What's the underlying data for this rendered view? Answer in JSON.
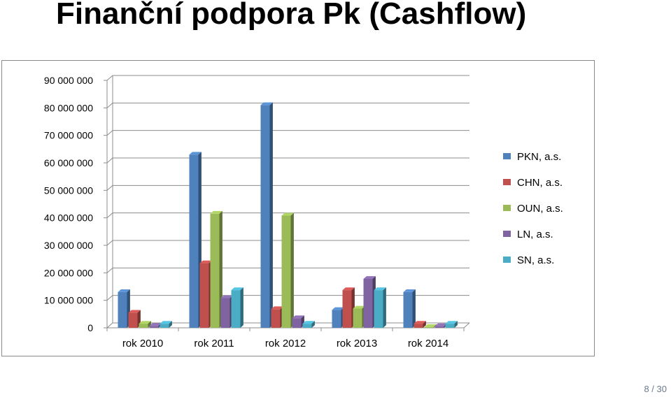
{
  "slide": {
    "title": "Finanční podpora Pk (Cashflow)",
    "page_number": "8 / 30"
  },
  "chart_data": {
    "type": "bar",
    "style": "3d-clustered",
    "categories": [
      "rok 2010",
      "rok 2011",
      "rok 2012",
      "rok 2013",
      "rok 2014"
    ],
    "series": [
      {
        "name": "PKN, a.s.",
        "color": "#4f81bd",
        "values": [
          13000000,
          63000000,
          81000000,
          6500000,
          13000000
        ]
      },
      {
        "name": "CHN, a.s.",
        "color": "#c0504d",
        "values": [
          5500000,
          23500000,
          6800000,
          13700000,
          1500000
        ]
      },
      {
        "name": "OUN, a.s.",
        "color": "#9bbb59",
        "values": [
          1500000,
          41500000,
          40800000,
          7000000,
          300000
        ]
      },
      {
        "name": "LN, a.s.",
        "color": "#8064a2",
        "values": [
          700000,
          10800000,
          3500000,
          17800000,
          600000
        ]
      },
      {
        "name": "SN, a.s.",
        "color": "#4bacc6",
        "values": [
          1500000,
          13700000,
          1500000,
          13700000,
          1500000
        ]
      }
    ],
    "y_ticks": [
      "0",
      "10 000 000",
      "20 000 000",
      "30 000 000",
      "40 000 000",
      "50 000 000",
      "60 000 000",
      "70 000 000",
      "80 000 000",
      "90 000 000"
    ],
    "ylim": [
      0,
      90000000
    ],
    "grid": true,
    "legend": "right"
  }
}
